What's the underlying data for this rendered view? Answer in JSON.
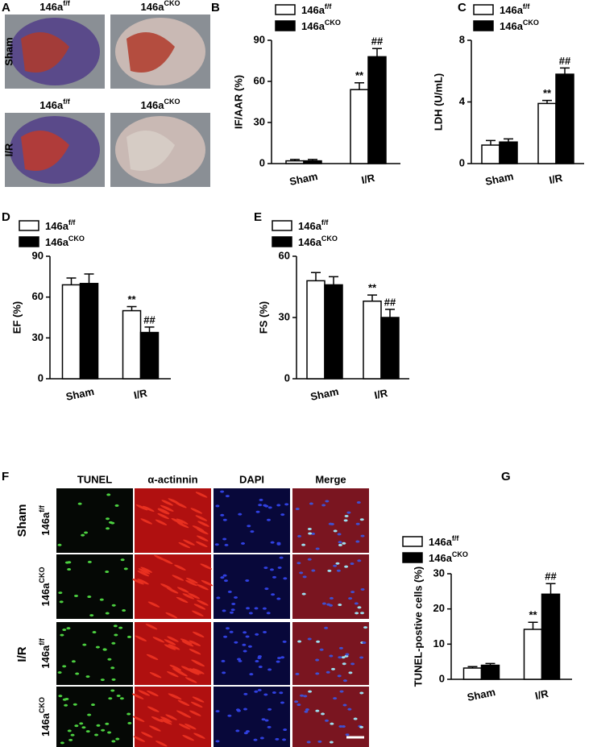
{
  "chart_data": [
    {
      "panel": "B",
      "type": "bar",
      "ylabel": "IF/AAR (%)",
      "categories": [
        "Sham",
        "I/R"
      ],
      "ylim": [
        0,
        90
      ],
      "yticks": [
        0,
        30,
        60,
        90
      ],
      "series": [
        {
          "name": "146a",
          "name_sup": "f/f",
          "color": "#ffffff",
          "values": [
            2,
            54
          ],
          "errors": [
            1,
            5
          ],
          "annotations": [
            null,
            "**"
          ]
        },
        {
          "name": "146a",
          "name_sup": "CKO",
          "color": "#000000",
          "values": [
            2,
            78
          ],
          "errors": [
            1,
            6
          ],
          "annotations": [
            null,
            "##"
          ]
        }
      ]
    },
    {
      "panel": "C",
      "type": "bar",
      "ylabel": "LDH (U/mL)",
      "categories": [
        "Sham",
        "I/R"
      ],
      "ylim": [
        0,
        8
      ],
      "yticks": [
        0,
        4,
        8
      ],
      "series": [
        {
          "name": "146a",
          "name_sup": "f/f",
          "color": "#ffffff",
          "values": [
            1.2,
            3.9
          ],
          "errors": [
            0.3,
            0.2
          ],
          "annotations": [
            null,
            "**"
          ]
        },
        {
          "name": "146a",
          "name_sup": "CKO",
          "color": "#000000",
          "values": [
            1.4,
            5.8
          ],
          "errors": [
            0.2,
            0.4
          ],
          "annotations": [
            null,
            "##"
          ]
        }
      ]
    },
    {
      "panel": "D",
      "type": "bar",
      "ylabel": "EF (%)",
      "categories": [
        "Sham",
        "I/R"
      ],
      "ylim": [
        0,
        90
      ],
      "yticks": [
        0,
        30,
        60,
        90
      ],
      "series": [
        {
          "name": "146a",
          "name_sup": "f/f",
          "color": "#ffffff",
          "values": [
            69,
            50
          ],
          "errors": [
            5,
            3
          ],
          "annotations": [
            null,
            "**"
          ]
        },
        {
          "name": "146a",
          "name_sup": "CKO",
          "color": "#000000",
          "values": [
            70,
            34
          ],
          "errors": [
            7,
            4
          ],
          "annotations": [
            null,
            "##"
          ]
        }
      ]
    },
    {
      "panel": "E",
      "type": "bar",
      "ylabel": "FS (%)",
      "categories": [
        "Sham",
        "I/R"
      ],
      "ylim": [
        0,
        60
      ],
      "yticks": [
        0,
        30,
        60
      ],
      "series": [
        {
          "name": "146a",
          "name_sup": "f/f",
          "color": "#ffffff",
          "values": [
            48,
            38
          ],
          "errors": [
            4,
            3
          ],
          "annotations": [
            null,
            "**"
          ]
        },
        {
          "name": "146a",
          "name_sup": "CKO",
          "color": "#000000",
          "values": [
            46,
            30
          ],
          "errors": [
            4,
            4
          ],
          "annotations": [
            null,
            "##"
          ]
        }
      ]
    },
    {
      "panel": "G",
      "type": "bar",
      "ylabel": "TUNEL-postive cells (%)",
      "categories": [
        "Sham",
        "I/R"
      ],
      "ylim": [
        0,
        30
      ],
      "yticks": [
        0,
        10,
        20,
        30
      ],
      "series": [
        {
          "name": "146a",
          "name_sup": "f/f",
          "color": "#ffffff",
          "values": [
            3.2,
            14.2
          ],
          "errors": [
            0.4,
            2
          ],
          "annotations": [
            null,
            "**"
          ]
        },
        {
          "name": "146a",
          "name_sup": "CKO",
          "color": "#000000",
          "values": [
            4.0,
            24.2
          ],
          "errors": [
            0.5,
            3
          ],
          "annotations": [
            null,
            "##"
          ]
        }
      ]
    }
  ],
  "panel_a": {
    "label": "A",
    "columns": [
      {
        "name": "146a",
        "sup": "f/f"
      },
      {
        "name": "146a",
        "sup": "CKO"
      }
    ],
    "rows": [
      "Sham",
      "I/R"
    ]
  },
  "panel_f": {
    "label": "F",
    "columns": [
      "TUNEL",
      "α-actinnin",
      "DAPI",
      "Merge"
    ],
    "rows": [
      {
        "name": "146a",
        "sup": "f/f"
      },
      {
        "name": "146a",
        "sup": "CKO"
      },
      {
        "name": "146a",
        "sup": "f/f"
      },
      {
        "name": "146a",
        "sup": "CKO"
      }
    ],
    "groups": [
      "Sham",
      "I/R"
    ]
  }
}
